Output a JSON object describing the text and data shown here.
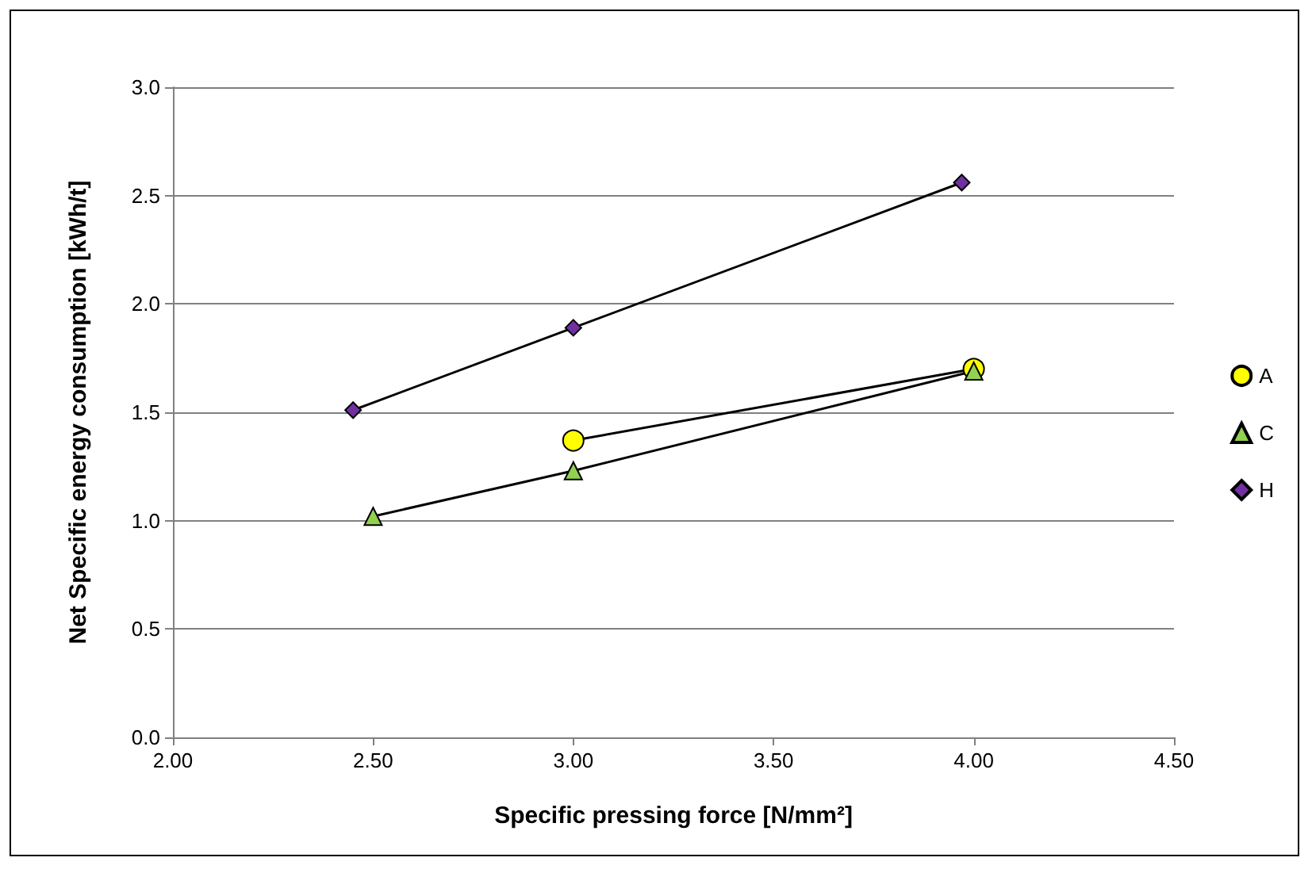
{
  "chart_data": {
    "type": "line",
    "xlabel": "Specific pressing force [N/mm²]",
    "ylabel": "Net Specific energy consumption [kWh/t]",
    "series": [
      {
        "name": "A",
        "color": "#ffff00",
        "marker": "circle",
        "x": [
          3.0,
          4.0
        ],
        "values": [
          1.37,
          1.7
        ]
      },
      {
        "name": "C",
        "color": "#92d050",
        "marker": "triangle",
        "x": [
          2.5,
          3.0,
          4.0
        ],
        "values": [
          1.02,
          1.23,
          1.69
        ]
      },
      {
        "name": "H",
        "color": "#7030a0",
        "marker": "diamond",
        "x": [
          2.45,
          3.0,
          3.97
        ],
        "values": [
          1.51,
          1.89,
          2.56
        ]
      }
    ],
    "xlim": [
      2,
      4.5
    ],
    "xticks": [
      {
        "value": 2,
        "label": "2.00"
      },
      {
        "value": 2.5,
        "label": "2.50"
      },
      {
        "value": 3,
        "label": "3.00"
      },
      {
        "value": 3.5,
        "label": "3.50"
      },
      {
        "value": 4,
        "label": "4.00"
      },
      {
        "value": 4.5,
        "label": "4.50"
      }
    ],
    "ylim": [
      0,
      3
    ],
    "yticks": [
      {
        "value": 0,
        "label": "0.0"
      },
      {
        "value": 0.5,
        "label": "0.5"
      },
      {
        "value": 1,
        "label": "1.0"
      },
      {
        "value": 1.5,
        "label": "1.5"
      },
      {
        "value": 2,
        "label": "2.0"
      },
      {
        "value": 2.5,
        "label": "2.5"
      },
      {
        "value": 3,
        "label": "3.0"
      }
    ],
    "grid": "y",
    "legend": "right",
    "line_style": "solid"
  }
}
